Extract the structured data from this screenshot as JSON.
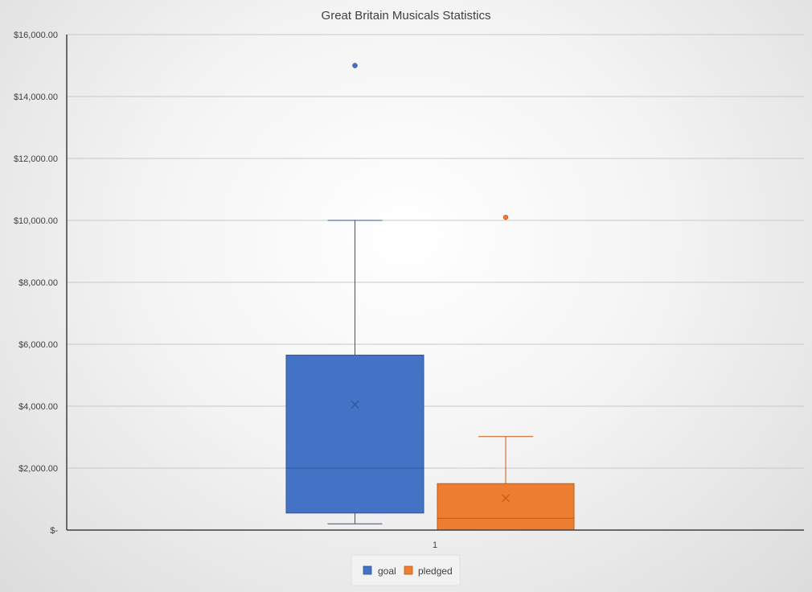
{
  "chart_data": {
    "type": "box",
    "title": "Great Britain Musicals Statistics",
    "xlabel": "",
    "ylabel": "",
    "categories": [
      "1"
    ],
    "ylim": [
      0,
      16000
    ],
    "yticks": [
      0,
      2000,
      4000,
      6000,
      8000,
      10000,
      12000,
      14000,
      16000
    ],
    "ytick_labels": [
      "$-",
      "$2,000.00",
      "$4,000.00",
      "$6,000.00",
      "$8,000.00",
      "$10,000.00",
      "$12,000.00",
      "$14,000.00",
      "$16,000.00"
    ],
    "grid": true,
    "legend_position": "bottom",
    "series": [
      {
        "name": "goal",
        "color": "#4472C4",
        "stroke": "#2F5597",
        "min": 200,
        "q1": 550,
        "median": 2000,
        "q3": 5650,
        "max": 10000,
        "mean": 4050,
        "outliers": [
          15000
        ]
      },
      {
        "name": "pledged",
        "color": "#ED7D31",
        "stroke": "#C55A11",
        "min": 0,
        "q1": 0,
        "median": 380,
        "q3": 1500,
        "max": 3020,
        "mean": 1030,
        "outliers": [
          10100
        ]
      }
    ]
  }
}
